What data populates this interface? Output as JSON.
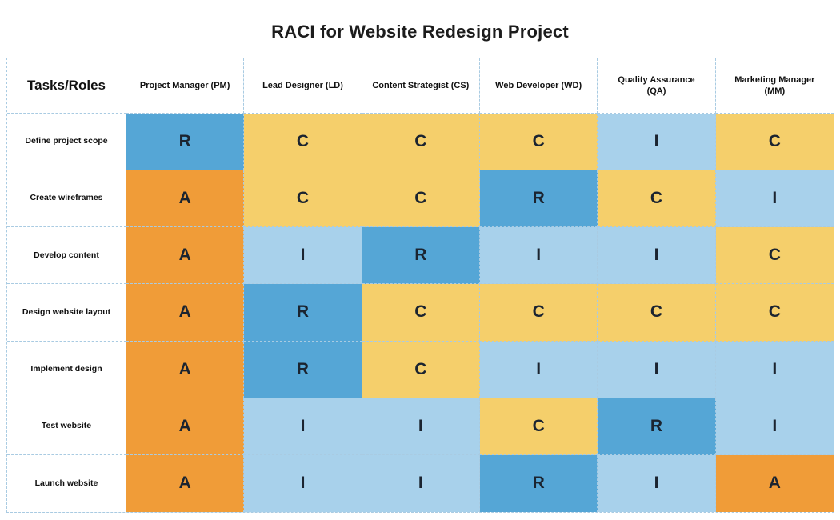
{
  "title": "RACI for Website Redesign Project",
  "colors": {
    "R": "#55a6d6",
    "A": "#f09c38",
    "C": "#f5cf6b",
    "I": "#a8d1eb",
    "grid_border": "#a9cbe2",
    "text": "#1b2430"
  },
  "chart_data": {
    "type": "table",
    "title": "RACI for Website Redesign Project",
    "corner_header": "Tasks/Roles",
    "columns": [
      "Project Manager (PM)",
      "Lead Designer (LD)",
      "Content Strategist (CS)",
      "Web Developer (WD)",
      "Quality Assurance (QA)",
      "Marketing Manager (MM)"
    ],
    "rows": [
      {
        "task": "Define project scope",
        "values": [
          "R",
          "C",
          "C",
          "C",
          "I",
          "C"
        ]
      },
      {
        "task": "Create wireframes",
        "values": [
          "A",
          "C",
          "C",
          "R",
          "C",
          "I"
        ]
      },
      {
        "task": "Develop content",
        "values": [
          "A",
          "I",
          "R",
          "I",
          "I",
          "C"
        ]
      },
      {
        "task": "Design website layout",
        "values": [
          "A",
          "R",
          "C",
          "C",
          "C",
          "C"
        ]
      },
      {
        "task": "Implement design",
        "values": [
          "A",
          "R",
          "C",
          "I",
          "I",
          "I"
        ]
      },
      {
        "task": "Test website",
        "values": [
          "A",
          "I",
          "I",
          "C",
          "R",
          "I"
        ]
      },
      {
        "task": "Launch website",
        "values": [
          "A",
          "I",
          "I",
          "R",
          "I",
          "A"
        ]
      }
    ]
  }
}
